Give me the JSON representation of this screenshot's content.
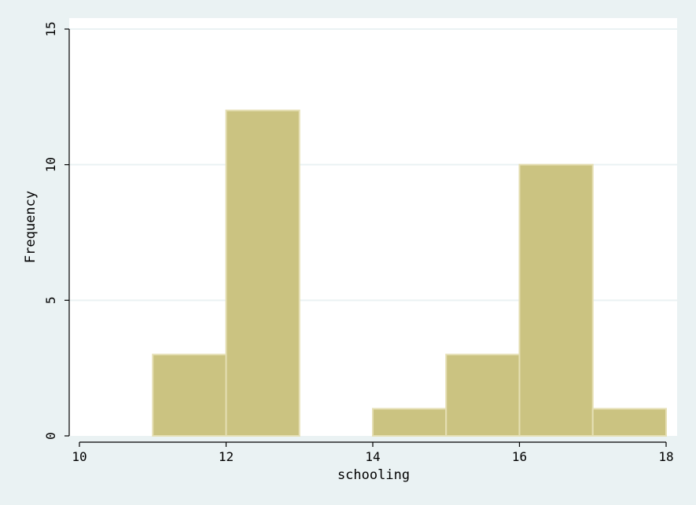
{
  "chart_data": {
    "type": "bar",
    "bins": [
      {
        "start": 11,
        "end": 12,
        "value": 3
      },
      {
        "start": 12,
        "end": 13,
        "value": 12
      },
      {
        "start": 14,
        "end": 15,
        "value": 1
      },
      {
        "start": 15,
        "end": 16,
        "value": 3
      },
      {
        "start": 16,
        "end": 17,
        "value": 10
      },
      {
        "start": 17,
        "end": 18,
        "value": 1
      }
    ],
    "xlabel": "schooling",
    "ylabel": "Frequency",
    "xlim": [
      10,
      18
    ],
    "ylim": [
      0,
      15
    ],
    "xticks": [
      "10",
      "12",
      "14",
      "16",
      "18"
    ],
    "yticks": [
      "0",
      "5",
      "10",
      "15"
    ],
    "grid": true,
    "colors": {
      "bar_fill": "#cbc381",
      "bar_edge": "#e5dfb4",
      "plot_background": "#ffffff",
      "outer_background": "#eaf2f3"
    }
  }
}
